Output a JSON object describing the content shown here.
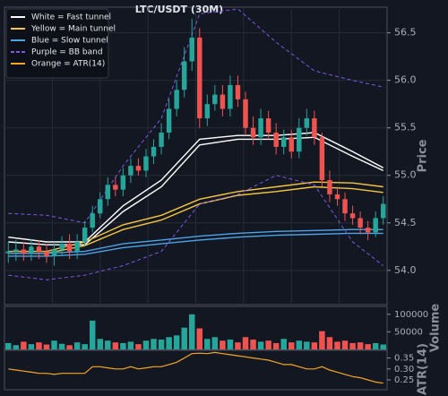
{
  "chart_data": [
    {
      "type": "candlestick",
      "title": "LTC/USDT (30M)",
      "y_label": "Price",
      "ylim": [
        53.64,
        56.77
      ],
      "yticks": [
        {
          "value": 54.0,
          "label": "54.0"
        },
        54.5,
        {
          "value": 55.0,
          "label": "55.0"
        },
        55.5,
        {
          "value": 56.0,
          "label": "56.0"
        },
        56.5
      ],
      "grid": true,
      "legend": "upper left",
      "up_color": "#26a69a",
      "down_color": "#ef5350",
      "open": [
        54.18,
        54.2,
        54.22,
        54.18,
        54.25,
        54.2,
        54.15,
        54.22,
        54.28,
        54.2,
        54.3,
        54.45,
        54.6,
        54.75,
        54.9,
        54.85,
        55.0,
        55.1,
        55.05,
        55.2,
        55.3,
        55.45,
        55.7,
        55.9,
        56.2,
        56.45,
        55.6,
        55.75,
        55.85,
        55.7,
        55.95,
        55.8,
        55.5,
        55.4,
        55.6,
        55.45,
        55.3,
        55.4,
        55.25,
        55.5,
        55.6,
        55.4,
        54.95,
        54.8,
        54.75,
        54.6,
        54.55,
        54.45,
        54.4,
        54.55
      ],
      "high": [
        54.3,
        54.32,
        54.3,
        54.33,
        54.32,
        54.28,
        54.3,
        54.36,
        54.38,
        54.38,
        54.52,
        54.68,
        54.82,
        54.98,
        54.98,
        55.08,
        55.18,
        55.18,
        55.28,
        55.38,
        55.55,
        55.8,
        56.0,
        56.35,
        56.65,
        56.55,
        55.85,
        55.95,
        55.95,
        56.05,
        56.05,
        55.88,
        55.62,
        55.7,
        55.68,
        55.55,
        55.48,
        55.48,
        55.6,
        55.7,
        55.68,
        55.45,
        55.05,
        54.88,
        54.82,
        54.68,
        54.62,
        54.52,
        54.62,
        54.78
      ],
      "low": [
        54.08,
        54.1,
        54.1,
        54.1,
        54.12,
        54.08,
        54.05,
        54.15,
        54.12,
        54.12,
        54.25,
        54.4,
        54.55,
        54.68,
        54.78,
        54.78,
        54.92,
        55.0,
        54.98,
        55.12,
        55.22,
        55.38,
        55.62,
        55.82,
        56.1,
        55.5,
        55.52,
        55.68,
        55.62,
        55.62,
        55.72,
        55.42,
        55.32,
        55.32,
        55.38,
        55.22,
        55.22,
        55.18,
        55.18,
        55.42,
        55.32,
        54.88,
        54.72,
        54.68,
        54.52,
        54.48,
        54.38,
        54.32,
        54.35,
        54.48
      ],
      "close": [
        54.2,
        54.22,
        54.18,
        54.25,
        54.2,
        54.15,
        54.22,
        54.28,
        54.2,
        54.3,
        54.45,
        54.6,
        54.75,
        54.9,
        54.85,
        55.0,
        55.1,
        55.05,
        55.2,
        55.3,
        55.45,
        55.7,
        55.9,
        56.2,
        56.45,
        55.6,
        55.75,
        55.85,
        55.7,
        55.95,
        55.8,
        55.5,
        55.4,
        55.6,
        55.45,
        55.3,
        55.4,
        55.25,
        55.5,
        55.6,
        55.4,
        54.95,
        54.8,
        54.75,
        54.6,
        54.55,
        54.45,
        54.4,
        54.55,
        54.7
      ],
      "series": [
        {
          "name": "White = Fast tunnel",
          "color": "#ffffff",
          "x": [
            0,
            5,
            10,
            15,
            20,
            25,
            30,
            35,
            40,
            45,
            49
          ],
          "upper": [
            54.35,
            54.3,
            54.3,
            54.68,
            54.95,
            55.38,
            55.42,
            55.42,
            55.45,
            55.25,
            55.08
          ],
          "lower": [
            54.3,
            54.27,
            54.27,
            54.62,
            54.88,
            55.32,
            55.38,
            55.38,
            55.4,
            55.2,
            55.05
          ]
        },
        {
          "name": "Yellow = Main tunnel",
          "color": "#f5c542",
          "x": [
            0,
            5,
            10,
            15,
            20,
            25,
            30,
            35,
            40,
            45,
            49
          ],
          "upper": [
            54.2,
            54.2,
            54.3,
            54.48,
            54.58,
            54.75,
            54.83,
            54.88,
            54.93,
            54.92,
            54.88
          ],
          "lower": [
            54.18,
            54.18,
            54.26,
            54.43,
            54.53,
            54.7,
            54.79,
            54.83,
            54.88,
            54.86,
            54.82
          ]
        },
        {
          "name": "Blue = Slow tunnel",
          "color": "#4da3e8",
          "x": [
            0,
            5,
            10,
            15,
            20,
            25,
            30,
            35,
            40,
            45,
            49
          ],
          "upper": [
            54.18,
            54.18,
            54.2,
            54.28,
            54.32,
            54.36,
            54.39,
            54.41,
            54.42,
            54.43,
            54.43
          ],
          "lower": [
            54.15,
            54.15,
            54.17,
            54.24,
            54.28,
            54.32,
            54.35,
            54.37,
            54.38,
            54.39,
            54.39
          ]
        },
        {
          "name": "Purple = BB band",
          "color": "#7e57e6",
          "dashed": true,
          "x": [
            0,
            5,
            10,
            15,
            20,
            25,
            30,
            35,
            40,
            45,
            49
          ],
          "upper": [
            54.6,
            54.58,
            54.5,
            55.1,
            55.6,
            56.7,
            56.75,
            56.4,
            56.1,
            56.0,
            55.93
          ],
          "lower": [
            53.95,
            53.9,
            53.95,
            54.05,
            54.2,
            54.7,
            54.8,
            55.0,
            54.9,
            54.3,
            54.05
          ]
        }
      ]
    },
    {
      "type": "bar",
      "y_label": "Volume",
      "ylim": [
        0,
        120000
      ],
      "yticks": [
        50000,
        100000
      ],
      "up_color": "#26a69a",
      "down_color": "#ef5350",
      "values": [
        18000,
        12000,
        22000,
        15000,
        20000,
        14000,
        25000,
        16000,
        12000,
        20000,
        15000,
        82000,
        30000,
        25000,
        20000,
        18000,
        22000,
        15000,
        25000,
        30000,
        28000,
        35000,
        40000,
        62000,
        100000,
        60000,
        30000,
        35000,
        25000,
        28000,
        20000,
        35000,
        28000,
        22000,
        25000,
        18000,
        30000,
        20000,
        25000,
        22000,
        20000,
        52000,
        35000,
        22000,
        25000,
        18000,
        20000,
        15000,
        18000,
        14000
      ]
    },
    {
      "type": "line",
      "y_label": "ATR(14)",
      "ylim": [
        0.205,
        0.385
      ],
      "yticks": [
        0.25,
        {
          "value": 0.3,
          "label": "0.30"
        },
        0.35
      ],
      "series": [
        {
          "name": "Orange = ATR(14)",
          "color": "#f5a623",
          "values": [
            0.3,
            0.295,
            0.29,
            0.285,
            0.28,
            0.28,
            0.275,
            0.28,
            0.28,
            0.28,
            0.28,
            0.31,
            0.31,
            0.305,
            0.3,
            0.3,
            0.31,
            0.3,
            0.305,
            0.31,
            0.31,
            0.32,
            0.33,
            0.35,
            0.37,
            0.372,
            0.37,
            0.375,
            0.37,
            0.365,
            0.36,
            0.355,
            0.35,
            0.345,
            0.34,
            0.33,
            0.32,
            0.32,
            0.31,
            0.3,
            0.3,
            0.31,
            0.295,
            0.285,
            0.275,
            0.265,
            0.26,
            0.25,
            0.24,
            0.235
          ]
        }
      ]
    }
  ]
}
